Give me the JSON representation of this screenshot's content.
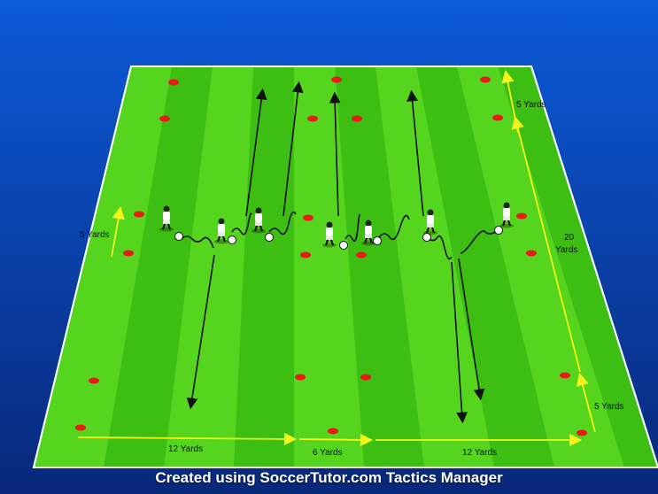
{
  "caption": "Created using SoccerTutor.com Tactics Manager",
  "colors": {
    "background_top": "#0a53c9",
    "background_bottom": "#0a2f86",
    "grass_light": "#4ccf1a",
    "grass_dark": "#2fa40c",
    "cone": "#e81a1a",
    "measure": "#f4f41a",
    "pass_arrow": "#111111"
  },
  "labels": {
    "left_5_yards": "5 Yards",
    "top_right_5_yards": "5 Yards",
    "right_20": "20",
    "right_yards": "Yards",
    "bottom_right_5_yards": "5 Yards",
    "bottom_12_yards_left": "12 Yards",
    "bottom_6_yards": "6 Yards",
    "bottom_12_yards_right": "12 Yards"
  }
}
